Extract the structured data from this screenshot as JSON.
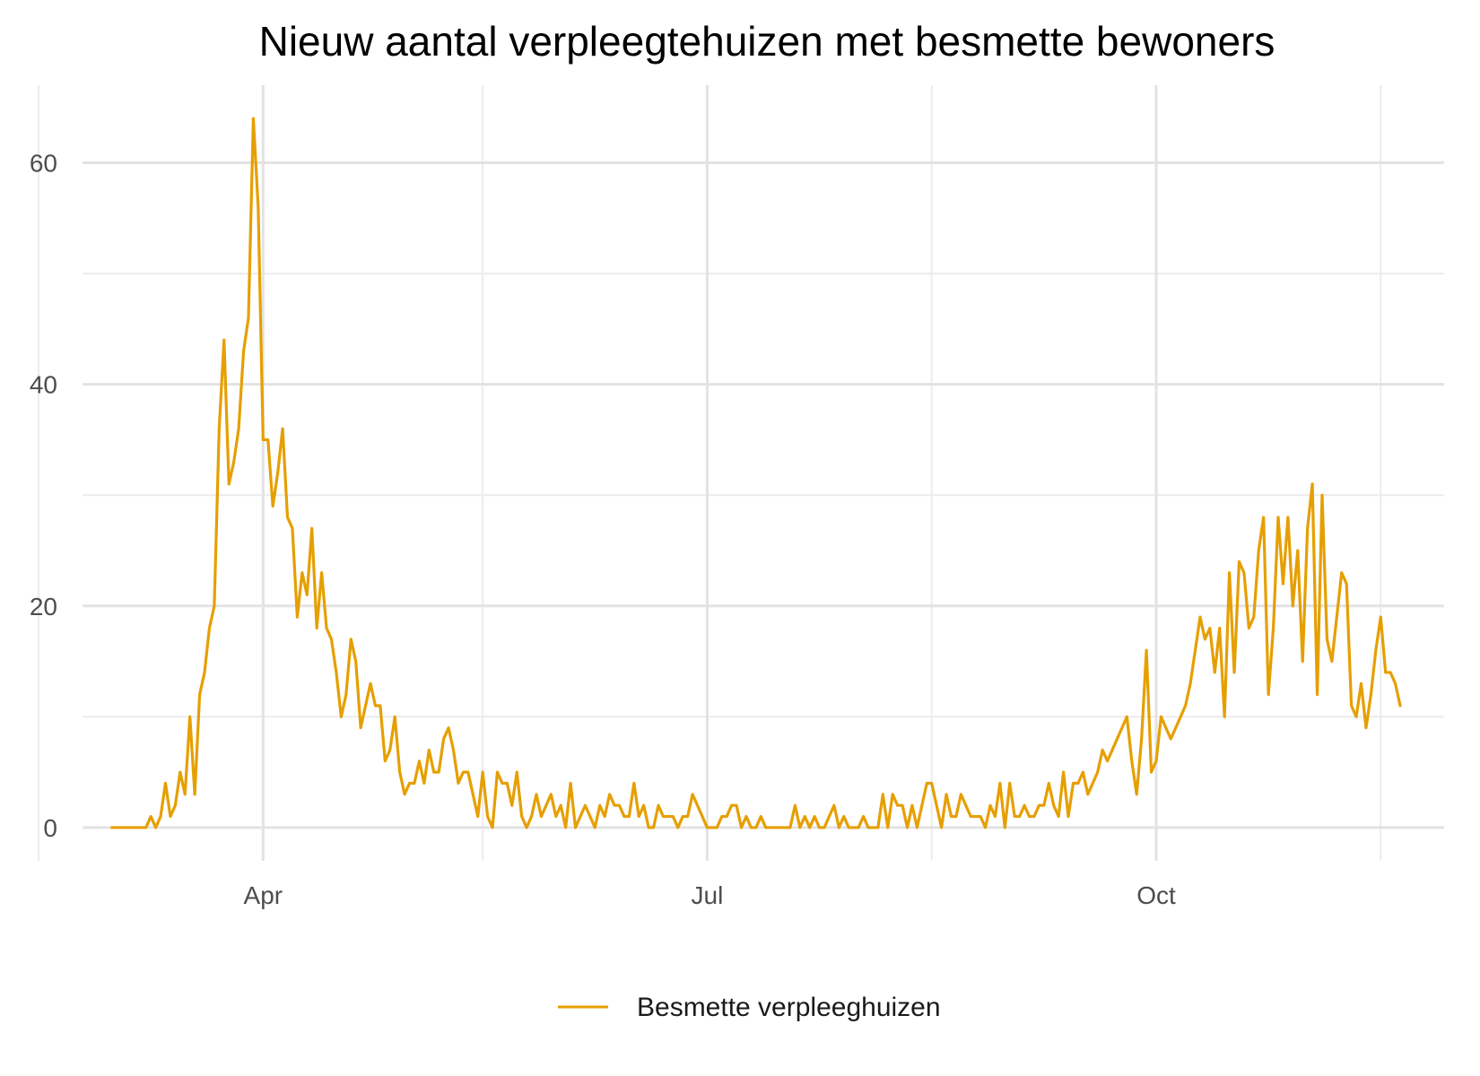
{
  "chart_data": {
    "type": "line",
    "title": "Nieuw aantal verpleegtehuizen met besmette bewoners",
    "xlabel": "",
    "ylabel": "",
    "x_start": "2020-03-01",
    "x_range": [
      "2020-02-24",
      "2020-11-29"
    ],
    "ylim": [
      -3,
      67
    ],
    "y_ticks": [
      0,
      20,
      40,
      60
    ],
    "y_minor_ticks": [
      10,
      30,
      50
    ],
    "x_ticks": [
      {
        "date": "2020-04-01",
        "label": "Apr"
      },
      {
        "date": "2020-07-01",
        "label": "Jul"
      },
      {
        "date": "2020-10-01",
        "label": "Oct"
      }
    ],
    "x_minor_ticks": [
      "2020-02-15",
      "2020-05-16",
      "2020-08-16",
      "2020-11-16"
    ],
    "grid": true,
    "legend_position": "bottom",
    "series": [
      {
        "name": "Besmette verpleeghuizen",
        "color": "#E69F00",
        "values": [
          0,
          0,
          0,
          0,
          0,
          0,
          0,
          0,
          1,
          0,
          1,
          4,
          1,
          2,
          5,
          3,
          10,
          3,
          12,
          14,
          18,
          20,
          36,
          44,
          31,
          33,
          36,
          43,
          46,
          64,
          56,
          35,
          35,
          29,
          32,
          36,
          28,
          27,
          19,
          23,
          21,
          27,
          18,
          23,
          18,
          17,
          14,
          10,
          12,
          17,
          15,
          9,
          11,
          13,
          11,
          11,
          6,
          7,
          10,
          5,
          3,
          4,
          4,
          6,
          4,
          7,
          5,
          5,
          8,
          9,
          7,
          4,
          5,
          5,
          3,
          1,
          5,
          1,
          0,
          5,
          4,
          4,
          2,
          5,
          1,
          0,
          1,
          3,
          1,
          2,
          3,
          1,
          2,
          0,
          4,
          0,
          1,
          2,
          1,
          0,
          2,
          1,
          3,
          2,
          2,
          1,
          1,
          4,
          1,
          2,
          0,
          0,
          2,
          1,
          1,
          1,
          0,
          1,
          1,
          3,
          2,
          1,
          0,
          0,
          0,
          1,
          1,
          2,
          2,
          0,
          1,
          0,
          0,
          1,
          0,
          0,
          0,
          0,
          0,
          0,
          2,
          0,
          1,
          0,
          1,
          0,
          0,
          1,
          2,
          0,
          1,
          0,
          0,
          0,
          1,
          0,
          0,
          0,
          3,
          0,
          3,
          2,
          2,
          0,
          2,
          0,
          2,
          4,
          4,
          2,
          0,
          3,
          1,
          1,
          3,
          2,
          1,
          1,
          1,
          0,
          2,
          1,
          4,
          0,
          4,
          1,
          1,
          2,
          1,
          1,
          2,
          2,
          4,
          2,
          1,
          5,
          1,
          4,
          4,
          5,
          3,
          4,
          5,
          7,
          6,
          7,
          8,
          9,
          10,
          6,
          3,
          8,
          16,
          5,
          6,
          10,
          9,
          8,
          9,
          10,
          11,
          13,
          16,
          19,
          17,
          18,
          14,
          18,
          10,
          23,
          14,
          24,
          23,
          18,
          19,
          25,
          28,
          12,
          18,
          28,
          22,
          28,
          20,
          25,
          15,
          27,
          31,
          12,
          30,
          17,
          15,
          19,
          23,
          22,
          11,
          10,
          13,
          9,
          12,
          16,
          19,
          14,
          14,
          13,
          11
        ]
      }
    ]
  }
}
